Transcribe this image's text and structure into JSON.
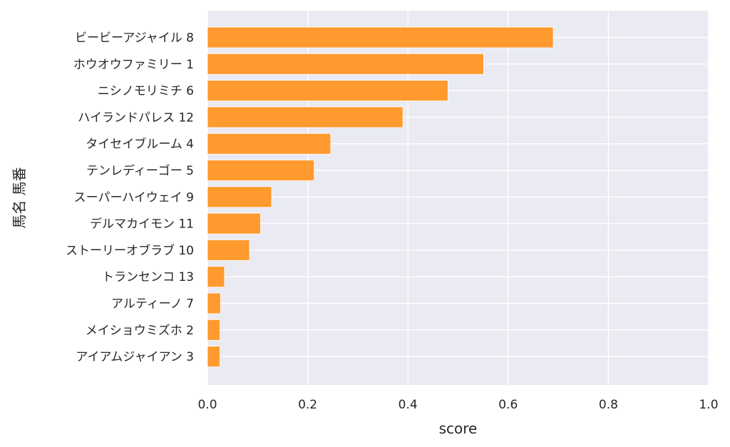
{
  "chart_data": {
    "type": "bar",
    "orientation": "horizontal",
    "categories": [
      "ビービーアジャイル 8",
      "ホウオウファミリー 1",
      "ニシノモリミチ 6",
      "ハイランドパレス 12",
      "タイセイブルーム 4",
      "テンレディーゴー 5",
      "スーパーハイウェイ 9",
      "デルマカイモン 11",
      "ストーリーオブラブ 10",
      "トランセンコ 13",
      "アルティーノ 7",
      "メイショウミズホ 2",
      "アイアムジャイアン 3"
    ],
    "values": [
      0.69,
      0.551,
      0.48,
      0.39,
      0.246,
      0.213,
      0.128,
      0.106,
      0.084,
      0.034,
      0.026,
      0.025,
      0.025
    ],
    "xlabel": "score",
    "ylabel": "馬名 馬番",
    "xlim": [
      0,
      1.0
    ],
    "xticks": [
      "0.0",
      "0.2",
      "0.4",
      "0.6",
      "0.8",
      "1.0"
    ],
    "xtick_values": [
      0,
      0.2,
      0.4,
      0.6,
      0.8,
      1.0
    ],
    "grid": true,
    "colors": {
      "bar": "#ff9a2e",
      "background": "#eaeaf2",
      "grid": "#ffffff"
    }
  }
}
